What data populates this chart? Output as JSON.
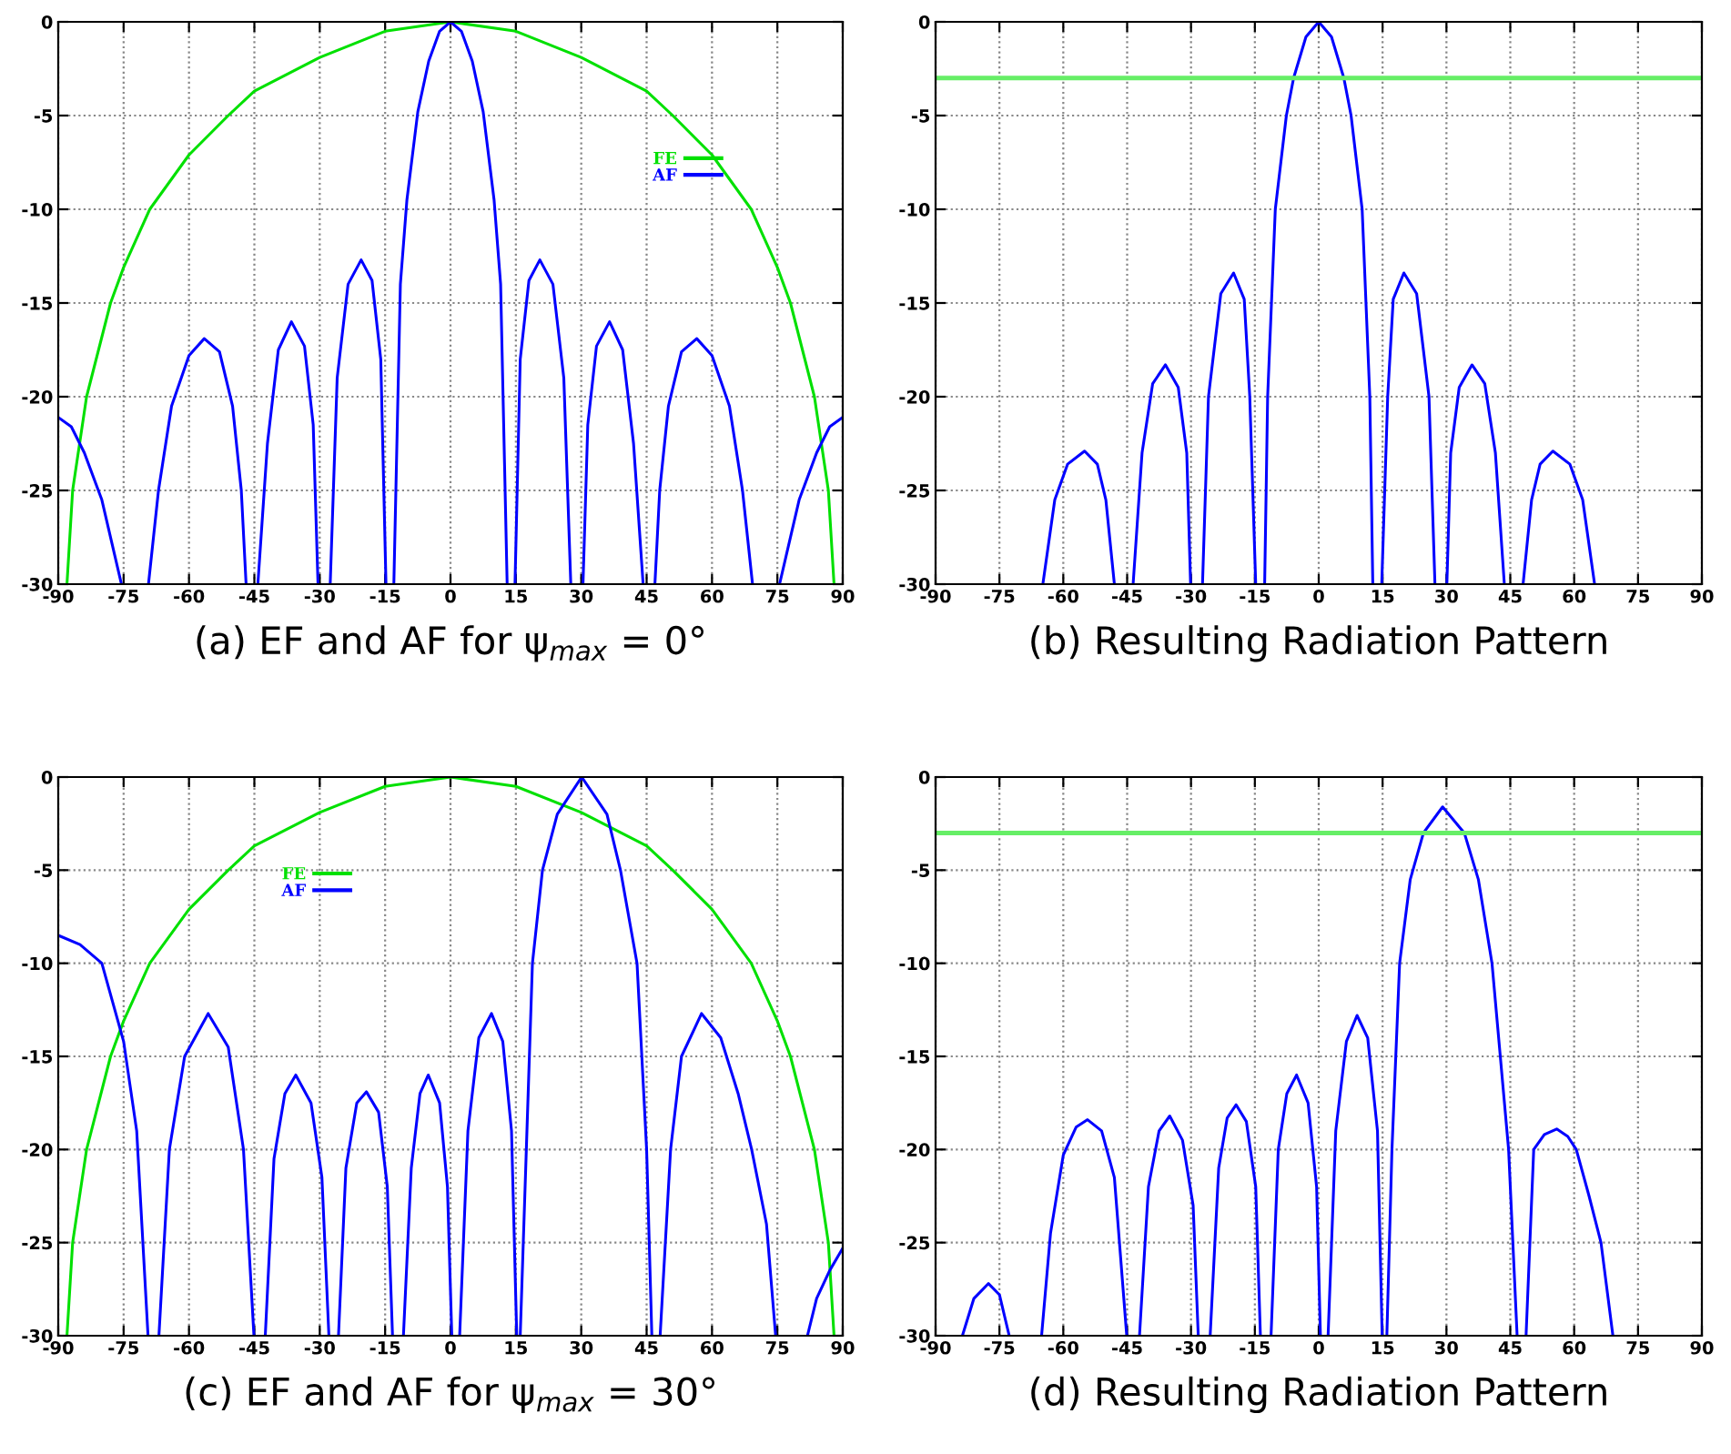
{
  "chart_data": [
    {
      "type": "line",
      "title": "(a) EF and AF for ψ$_{max}$ = 0°",
      "xlim": [
        -90,
        90
      ],
      "ylim": [
        -30,
        0
      ],
      "xticks": [
        -90,
        -75,
        -60,
        -45,
        -30,
        -15,
        0,
        15,
        30,
        45,
        60,
        75,
        90
      ],
      "yticks": [
        -30,
        -25,
        -20,
        -15,
        -10,
        -5,
        0
      ],
      "grid": true,
      "legend": "top right",
      "series": [
        {
          "name": "FE",
          "color": "#00e000",
          "x": [
            -88,
            -86.7,
            -83.5,
            -78,
            -75,
            -69,
            -60,
            -51,
            -45,
            -30,
            -15,
            0,
            15,
            30,
            45,
            51,
            60,
            69,
            75,
            78,
            83.5,
            86.7,
            88
          ],
          "values": [
            -30,
            -25,
            -20,
            -15,
            -13.1,
            -10,
            -7.1,
            -5,
            -3.7,
            -1.9,
            -0.5,
            0,
            -0.5,
            -1.9,
            -3.7,
            -5,
            -7.1,
            -10,
            -13.1,
            -15,
            -20,
            -25,
            -30
          ]
        },
        {
          "name": "AF",
          "color": "#0000ff",
          "x": [
            -90,
            -87,
            -84,
            -80,
            -77,
            -75.5,
            -72,
            -69.3,
            -67,
            -64,
            -60,
            -56.5,
            -53,
            -50,
            -48,
            -46.9,
            -45.5,
            -44.2,
            -42,
            -39.5,
            -36.5,
            -33.5,
            -31.5,
            -30.4,
            -29,
            -27.6,
            -26,
            -23.5,
            -20.5,
            -18,
            -16,
            -14.8,
            -14,
            -13,
            -11.5,
            -10,
            -7.5,
            -5,
            -2.5,
            0,
            2.5,
            5,
            7.5,
            10,
            11.5,
            13,
            14,
            14.8,
            16,
            18,
            20.5,
            23.5,
            26,
            27.6,
            29,
            30.4,
            31.5,
            33.5,
            36.5,
            39.5,
            42,
            44.2,
            45.5,
            46.9,
            48,
            50,
            53,
            56.5,
            60,
            64,
            67,
            69.3,
            72,
            75.5,
            77,
            80,
            84,
            87,
            90
          ],
          "values": [
            -21.1,
            -21.6,
            -23,
            -25.5,
            -28.5,
            -30,
            null,
            -30,
            -25,
            -20.5,
            -17.8,
            -16.9,
            -17.6,
            -20.5,
            -25,
            -30,
            null,
            -30,
            -22.5,
            -17.5,
            -16,
            -17.3,
            -21.5,
            -30,
            null,
            -30,
            -19,
            -14,
            -12.7,
            -13.8,
            -18,
            -30,
            null,
            -30,
            -14,
            -9.5,
            -4.8,
            -2.1,
            -0.5,
            0,
            -0.5,
            -2.1,
            -4.8,
            -9.5,
            -14,
            -30,
            null,
            -30,
            -18,
            -13.8,
            -12.7,
            -14,
            -19,
            -30,
            null,
            -30,
            -21.5,
            -17.3,
            -16,
            -17.5,
            -22.5,
            -30,
            null,
            -30,
            -25,
            -20.5,
            -17.6,
            -16.9,
            -17.8,
            -20.5,
            -25,
            -30,
            null,
            -30,
            -28.5,
            -25.5,
            -23,
            -21.6,
            -21.1
          ]
        }
      ]
    },
    {
      "type": "line",
      "title": "(b) Resulting Radiation Pattern",
      "xlim": [
        -90,
        90
      ],
      "ylim": [
        -30,
        0
      ],
      "xticks": [
        -90,
        -75,
        -60,
        -45,
        -30,
        -15,
        0,
        15,
        30,
        45,
        60,
        75,
        90
      ],
      "yticks": [
        -30,
        -25,
        -20,
        -15,
        -10,
        -5,
        0
      ],
      "grid": true,
      "ref_lines": [
        {
          "axis": "y",
          "value": -3,
          "color": "#66ee66"
        }
      ],
      "series": [
        {
          "color": "#0000ff",
          "x": [
            -64.8,
            -62,
            -59,
            -55,
            -52,
            -50,
            -48,
            -46,
            -43.6,
            -41.5,
            -39,
            -36,
            -33,
            -31,
            -30.1,
            -28.7,
            -27.3,
            -25.9,
            -23,
            -20,
            -17.5,
            -16.2,
            -14.8,
            -13.7,
            -12.7,
            -12,
            -10.2,
            -7.6,
            -5.9,
            -3,
            0,
            3,
            5.9,
            7.6,
            10.2,
            12,
            12.7,
            13.7,
            14.8,
            16.2,
            17.5,
            20,
            23,
            25.9,
            27.3,
            28.7,
            30.1,
            31,
            33,
            36,
            39,
            41.5,
            43.6,
            46,
            48,
            50,
            52,
            55,
            59,
            62,
            64.8
          ],
          "values": [
            -30,
            -25.5,
            -23.6,
            -22.9,
            -23.6,
            -25.5,
            -30,
            null,
            -30,
            -23,
            -19.3,
            -18.3,
            -19.5,
            -23,
            -30,
            null,
            -30,
            -20,
            -14.5,
            -13.4,
            -14.8,
            -20,
            -30,
            null,
            -30,
            -20,
            -10,
            -5,
            -3,
            -0.8,
            0,
            -0.8,
            -3,
            -5,
            -10,
            -20,
            -30,
            null,
            -30,
            -20,
            -14.8,
            -13.4,
            -14.5,
            -20,
            -30,
            null,
            -30,
            -23,
            -19.5,
            -18.3,
            -19.3,
            -23,
            -30,
            null,
            -30,
            -25.5,
            -23.6,
            -22.9,
            -23.6,
            -25.5,
            -30
          ]
        }
      ]
    },
    {
      "type": "line",
      "title": "(c) EF and AF for ψ$_{max}$ = 30°",
      "xlim": [
        -90,
        90
      ],
      "ylim": [
        -30,
        0
      ],
      "xticks": [
        -90,
        -75,
        -60,
        -45,
        -30,
        -15,
        0,
        15,
        30,
        45,
        60,
        75,
        90
      ],
      "yticks": [
        -30,
        -25,
        -20,
        -15,
        -10,
        -5,
        0
      ],
      "grid": true,
      "legend": "top left",
      "series": [
        {
          "name": "FE",
          "color": "#00e000",
          "x": [
            -88,
            -86.7,
            -83.5,
            -78,
            -75,
            -69,
            -60,
            -51,
            -45,
            -30,
            -15,
            0,
            15,
            30,
            45,
            51,
            60,
            69,
            75,
            78,
            83.5,
            86.7,
            88
          ],
          "values": [
            -30,
            -25,
            -20,
            -15,
            -13.1,
            -10,
            -7.1,
            -5,
            -3.7,
            -1.9,
            -0.5,
            0,
            -0.5,
            -1.9,
            -3.7,
            -5,
            -7.1,
            -10,
            -13.1,
            -15,
            -20,
            -25,
            -30
          ]
        },
        {
          "name": "AF",
          "color": "#0000ff",
          "x": [
            -90,
            -85,
            -80,
            -75,
            -72,
            -69.4,
            -68,
            -66.9,
            -64.5,
            -61,
            -55.6,
            -51,
            -47.5,
            -45.1,
            -43.8,
            -42.5,
            -40.5,
            -38,
            -35.5,
            -32,
            -29.5,
            -27.9,
            -26.8,
            -25.7,
            -24,
            -21.5,
            -19.3,
            -16.5,
            -14.5,
            -13.3,
            -12,
            -10.8,
            -9,
            -7,
            -5.1,
            -2.5,
            -0.7,
            0.3,
            1.2,
            2.1,
            4,
            6.5,
            9.4,
            12,
            14,
            15.2,
            15.6,
            16,
            17.4,
            18.8,
            21.1,
            24.5,
            30.1,
            35.9,
            39,
            42.8,
            45,
            46.2,
            47.2,
            48.1,
            50.5,
            53,
            57.6,
            62,
            66,
            69.1,
            72.5,
            74.6,
            78,
            81.9,
            84,
            87,
            90
          ],
          "values": [
            -8.5,
            -9,
            -10,
            -14.2,
            -19,
            -30,
            null,
            -30,
            -20,
            -15,
            -12.7,
            -14.5,
            -20,
            -30,
            null,
            -30,
            -20.5,
            -17,
            -16,
            -17.5,
            -21.5,
            -30,
            null,
            -30,
            -21,
            -17.5,
            -16.9,
            -18,
            -22,
            -30,
            null,
            -30,
            -21,
            -17,
            -16,
            -17.5,
            -22,
            -30,
            null,
            -30,
            -19,
            -14,
            -12.7,
            -14.2,
            -19,
            -30,
            null,
            -30,
            -20,
            -10,
            -5,
            -2,
            0,
            -2,
            -5,
            -10,
            -20,
            -30,
            null,
            -30,
            -20,
            -15,
            -12.7,
            -14,
            -17,
            -20,
            -24,
            -30,
            null,
            -30,
            -28,
            -26.5,
            -25.3
          ]
        }
      ]
    },
    {
      "type": "line",
      "title": "(d) Resulting Radiation Pattern",
      "xlim": [
        -90,
        90
      ],
      "ylim": [
        -30,
        0
      ],
      "xticks": [
        -90,
        -75,
        -60,
        -45,
        -30,
        -15,
        0,
        15,
        30,
        45,
        60,
        75,
        90
      ],
      "yticks": [
        -30,
        -25,
        -20,
        -15,
        -10,
        -5,
        0
      ],
      "grid": true,
      "ref_lines": [
        {
          "axis": "y",
          "value": -3,
          "color": "#66ee66"
        }
      ],
      "series": [
        {
          "color": "#0000ff",
          "x": [
            -83.7,
            -81,
            -77.6,
            -75,
            -72.7,
            -69,
            -65.1,
            -63,
            -60,
            -57,
            -54.3,
            -51,
            -48,
            -45.1,
            -43.6,
            -42.1,
            -40,
            -37.5,
            -35,
            -32,
            -29.5,
            -28.3,
            -26.9,
            -25.5,
            -23.5,
            -21.5,
            -19.4,
            -17,
            -14.8,
            -13.7,
            -12.5,
            -11.2,
            -9.5,
            -7.5,
            -5.2,
            -2.5,
            -0.5,
            0.4,
            1.3,
            2.2,
            4,
            6.5,
            9,
            11.5,
            13.8,
            14.9,
            15.4,
            16,
            17.2,
            19,
            21.5,
            24.6,
            29.1,
            34.2,
            37.5,
            40.7,
            44.6,
            46.6,
            47.6,
            48.7,
            50.5,
            53,
            55.9,
            58.5,
            60.5,
            63.5,
            66.3,
            69.1
          ],
          "values": [
            -30,
            -28,
            -27.2,
            -27.8,
            -30,
            null,
            -30,
            -24.5,
            -20.3,
            -18.8,
            -18.4,
            -19,
            -21.5,
            -30,
            null,
            -30,
            -22,
            -19,
            -18.2,
            -19.5,
            -23,
            -30,
            null,
            -30,
            -21,
            -18.3,
            -17.6,
            -18.5,
            -22,
            -30,
            null,
            -30,
            -20,
            -17,
            -16,
            -17.5,
            -22,
            -30,
            null,
            -30,
            -19,
            -14.2,
            -12.8,
            -14,
            -19,
            -30,
            null,
            -30,
            -20,
            -10,
            -5.5,
            -3,
            -1.6,
            -3,
            -5.5,
            -10,
            -20,
            -30,
            null,
            -30,
            -20,
            -19.2,
            -18.9,
            -19.3,
            -20,
            -22.5,
            -25,
            -30
          ]
        }
      ]
    }
  ]
}
